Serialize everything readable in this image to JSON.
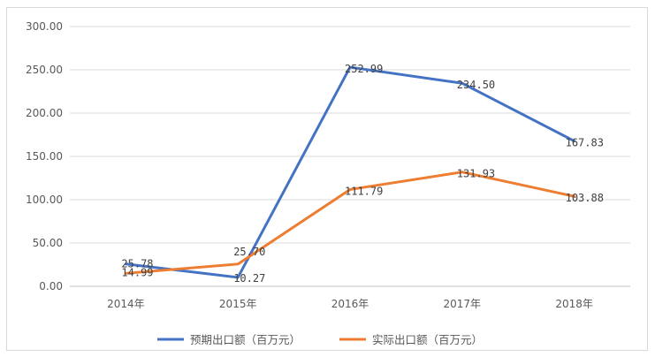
{
  "chart_data": {
    "type": "line",
    "categories": [
      "2014年",
      "2015年",
      "2016年",
      "2017年",
      "2018年"
    ],
    "series": [
      {
        "name": "预期出口额（百万元）",
        "color": "#4472C4",
        "values": [
          25.78,
          10.27,
          252.99,
          234.5,
          167.83
        ],
        "labels": [
          "25.78",
          "10.27",
          "252.99",
          "234.50",
          "167.83"
        ]
      },
      {
        "name": "实际出口额（百万元）",
        "color": "#ED7D31",
        "values": [
          14.99,
          25.7,
          111.79,
          131.93,
          103.88
        ],
        "labels": [
          "14.99",
          "25.70",
          "111.79",
          "131.93",
          "103.88"
        ]
      }
    ],
    "yticks": [
      "0.00",
      "50.00",
      "100.00",
      "150.00",
      "200.00",
      "250.00",
      "300.00"
    ],
    "ylim": [
      0,
      300
    ],
    "grid": true,
    "legend_position": "bottom"
  }
}
